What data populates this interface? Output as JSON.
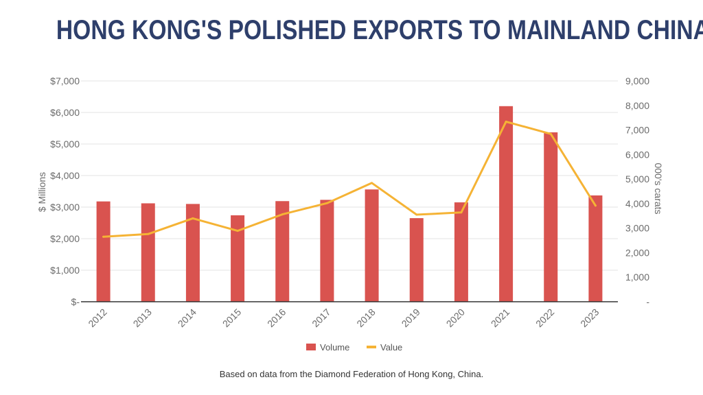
{
  "title": "HONG KONG'S POLISHED EXPORTS TO MAINLAND CHINA",
  "source_note": "Based on data from the Diamond Federation of Hong Kong, China.",
  "colors": {
    "title": "#2e3f6b",
    "volume": "#d9534f",
    "value": "#f5b335",
    "grid": "#e3e3e3",
    "axis": "#333333",
    "tick": "#6b6b6b"
  },
  "chart_data": {
    "type": "bar",
    "title": "HONG KONG'S POLISHED EXPORTS TO MAINLAND CHINA",
    "categories": [
      "2012",
      "2013",
      "2014",
      "2015",
      "2016",
      "2017",
      "2018",
      "2019",
      "2020",
      "2021",
      "2022",
      "2023"
    ],
    "y_left": {
      "label": "$ Millions",
      "min": 0,
      "max": 7000,
      "step": 1000,
      "tick_labels": [
        "$-",
        "$1,000",
        "$2,000",
        "$3,000",
        "$4,000",
        "$5,000",
        "$6,000",
        "$7,000"
      ]
    },
    "y_right": {
      "label": "000's carats",
      "min": 0,
      "max": 9000,
      "step": 1000,
      "tick_labels": [
        "-",
        "1,000",
        "2,000",
        "3,000",
        "4,000",
        "5,000",
        "6,000",
        "7,000",
        "8,000",
        "9,000"
      ]
    },
    "series": [
      {
        "name": "Volume",
        "type": "bar",
        "axis": "left",
        "values": [
          3180,
          3120,
          3100,
          2740,
          3190,
          3230,
          3560,
          2650,
          3150,
          6200,
          5370,
          3370
        ]
      },
      {
        "name": "Value",
        "type": "line",
        "axis": "right",
        "values": [
          2650,
          2760,
          3400,
          2890,
          3560,
          4020,
          4840,
          3550,
          3640,
          7340,
          6840,
          3920
        ]
      }
    ],
    "grid": true,
    "legend": "bottom-center"
  }
}
